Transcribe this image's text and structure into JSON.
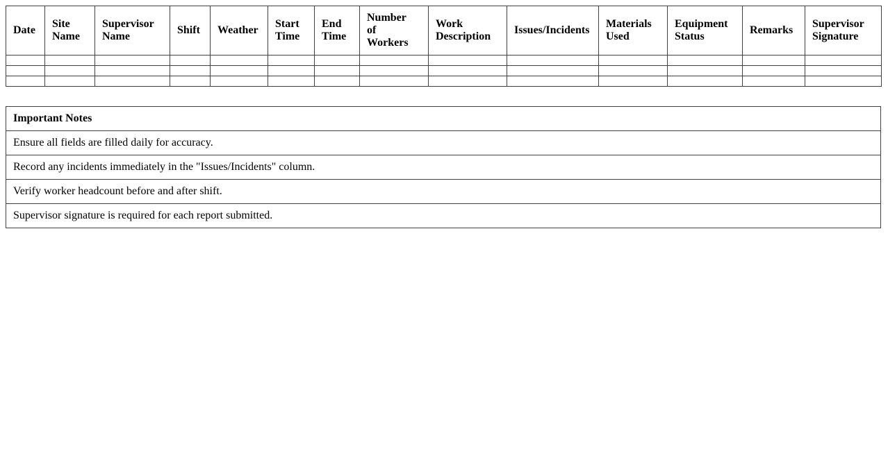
{
  "report_table": {
    "headers": [
      "Date",
      "Site Name",
      "Supervisor Name",
      "Shift",
      "Weather",
      "Start Time",
      "End Time",
      "Number of Workers",
      "Work Description",
      "Issues/Incidents",
      "Materials Used",
      "Equipment Status",
      "Remarks",
      "Supervisor Signature"
    ],
    "empty_rows": 3
  },
  "notes_table": {
    "title": "Important Notes",
    "items": [
      "Ensure all fields are filled daily for accuracy.",
      "Record any incidents immediately in the \"Issues/Incidents\" column.",
      "Verify worker headcount before and after shift.",
      "Supervisor signature is required for each report submitted."
    ]
  },
  "colors": {
    "border": "#404040",
    "text": "#000000",
    "background": "#ffffff"
  }
}
